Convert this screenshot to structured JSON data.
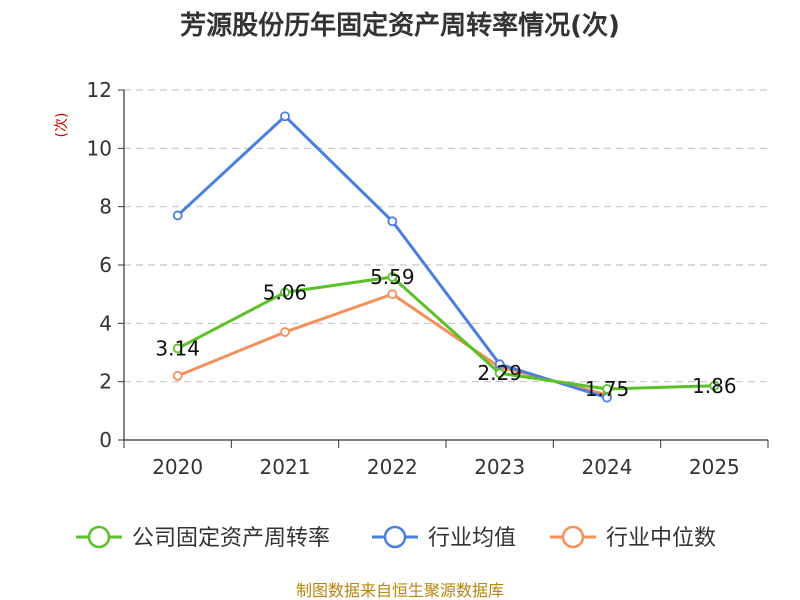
{
  "chart_data": {
    "type": "line",
    "title": "芳源股份历年固定资产周转率情况(次)",
    "ylabel": "(次)",
    "categories": [
      "2020",
      "2021",
      "2022",
      "2023",
      "2024",
      "2025"
    ],
    "y_ticks": [
      "0",
      "2",
      "4",
      "6",
      "8",
      "10",
      "12"
    ],
    "ylim": [
      0,
      12
    ],
    "grid": true,
    "legend_position": "bottom",
    "series": [
      {
        "name": "公司固定资产周转率",
        "color": "#5bc127",
        "values": [
          3.14,
          5.06,
          5.59,
          2.29,
          1.75,
          1.86
        ],
        "labels": [
          "3.14",
          "5.06",
          "5.59",
          "2.29",
          "1.75",
          "1.86"
        ]
      },
      {
        "name": "行业均值",
        "color": "#4a7fe0",
        "values": [
          7.7,
          11.1,
          7.5,
          2.6,
          1.45,
          null
        ]
      },
      {
        "name": "行业中位数",
        "color": "#f5905a",
        "values": [
          2.2,
          3.7,
          5.0,
          2.5,
          1.55,
          null
        ]
      }
    ],
    "source": "制图数据来自恒生聚源数据库"
  }
}
